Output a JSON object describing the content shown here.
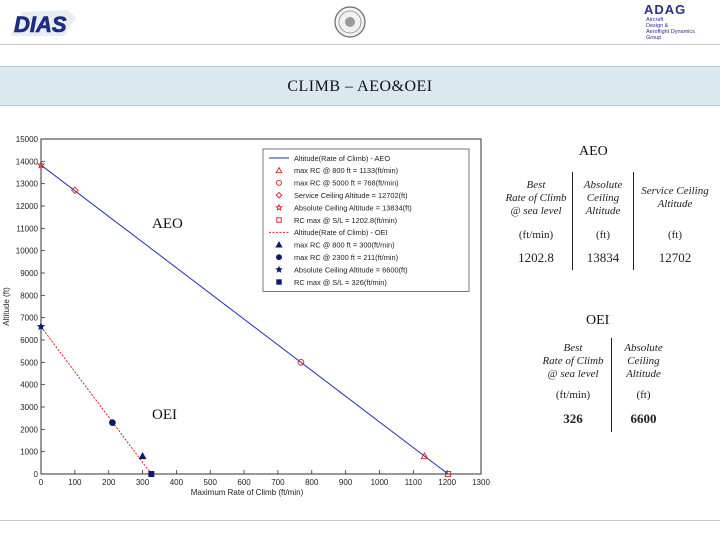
{
  "header": {
    "left_logo_text": "DIAS",
    "right_logo_text": "ADAG",
    "right_logo_subtitle": [
      "Aircraft",
      "Design &",
      "Aeroflight Dynamics",
      "Group"
    ]
  },
  "banner": {
    "title": "CLIMB – AEO&OEI"
  },
  "labels": {
    "aeo": "AEO",
    "oei": "OEI"
  },
  "chart_data": {
    "type": "scatter",
    "xlabel": "Maximum Rate of Climb (ft/min)",
    "ylabel": "Altitude (ft)",
    "xlim": [
      0,
      1300
    ],
    "ylim": [
      0,
      15000
    ],
    "x_ticks": [
      0,
      100,
      200,
      300,
      400,
      500,
      600,
      700,
      800,
      900,
      1000,
      1100,
      1200,
      1300
    ],
    "y_ticks": [
      0,
      1000,
      2000,
      3000,
      4000,
      5000,
      6000,
      7000,
      8000,
      9000,
      10000,
      11000,
      12000,
      13000,
      14000,
      15000
    ],
    "grid": false,
    "legend_position": "top-right",
    "lines": [
      {
        "name": "Altitude(Rate of Climb) - AEO",
        "color": "#1f2fb0",
        "dash": "solid",
        "points": [
          [
            1202.8,
            0
          ],
          [
            0,
            13834
          ]
        ]
      },
      {
        "name": "Altitude(Rate of Climb) - OEI",
        "color": "#d42020",
        "dash": "dotted",
        "points": [
          [
            326,
            0
          ],
          [
            0,
            6600
          ]
        ]
      }
    ],
    "markers": [
      {
        "name": "max RC @ 800 ft = 1133(ft/min)",
        "shape": "triangle-open",
        "color": "#d42020",
        "x": 1133,
        "y": 800
      },
      {
        "name": "max RC @ 5000 ft = 768(ft/min)",
        "shape": "circle-open",
        "color": "#d42020",
        "x": 768,
        "y": 5000
      },
      {
        "name": "Service Ceiling Altitude = 12702(ft)",
        "shape": "diamond-open",
        "color": "#d42020",
        "x": 100,
        "y": 12702
      },
      {
        "name": "Absolute Ceiling Altitude = 13834(ft)",
        "shape": "star-open",
        "color": "#d42020",
        "x": 0,
        "y": 13834
      },
      {
        "name": "RC max @ S/L = 1202.8(ft/min)",
        "shape": "square-open",
        "color": "#d42020",
        "x": 1202.8,
        "y": 0
      },
      {
        "name": "max RC @ 800 ft = 300(ft/min)",
        "shape": "triangle-filled",
        "color": "#0b1a6e",
        "x": 300,
        "y": 800
      },
      {
        "name": "max RC @ 2300 ft = 211(ft/min)",
        "shape": "circle-filled",
        "color": "#0b1a6e",
        "x": 211,
        "y": 2300
      },
      {
        "name": "Absolute Ceiling Altitude = 6600(ft)",
        "shape": "star-filled",
        "color": "#0b1a6e",
        "x": 0,
        "y": 6600
      },
      {
        "name": "RC max @ S/L = 326(ft/min)",
        "shape": "square-filled",
        "color": "#0b1a6e",
        "x": 326,
        "y": 0
      }
    ],
    "legend": [
      {
        "text": "Altitude(Rate of Climb) - AEO",
        "kind": "line",
        "color": "#1f2fb0",
        "dash": "solid"
      },
      {
        "text": "max RC @ 800 ft = 1133(ft/min)",
        "kind": "marker",
        "shape": "triangle-open",
        "color": "#d42020"
      },
      {
        "text": "max RC @ 5000 ft = 768(ft/min)",
        "kind": "marker",
        "shape": "circle-open",
        "color": "#d42020"
      },
      {
        "text": "Service Ceiling Altitude = 12702(ft)",
        "kind": "marker",
        "shape": "diamond-open",
        "color": "#d42020"
      },
      {
        "text": "Absolute Ceiling Altitude = 13834(ft)",
        "kind": "marker",
        "shape": "star-open",
        "color": "#d42020"
      },
      {
        "text": "RC max @ S/L = 1202.8(ft/min)",
        "kind": "marker",
        "shape": "square-open",
        "color": "#d42020"
      },
      {
        "text": "Altitude(Rate of Climb) - OEI",
        "kind": "line",
        "color": "#d42020",
        "dash": "dotted"
      },
      {
        "text": "max RC @ 800 ft = 300(ft/min)",
        "kind": "marker",
        "shape": "triangle-filled",
        "color": "#0b1a6e"
      },
      {
        "text": "max RC @ 2300 ft = 211(ft/min)",
        "kind": "marker",
        "shape": "circle-filled",
        "color": "#0b1a6e"
      },
      {
        "text": "Absolute Ceiling Altitude = 6600(ft)",
        "kind": "marker",
        "shape": "star-filled",
        "color": "#0b1a6e"
      },
      {
        "text": "RC max @ S/L = 326(ft/min)",
        "kind": "marker",
        "shape": "square-filled",
        "color": "#0b1a6e"
      }
    ]
  },
  "aeo_table": {
    "title": "AEO",
    "headers": [
      [
        "Best",
        "Rate of Climb",
        "@ sea level"
      ],
      [
        "Absolute",
        "Ceiling",
        "Altitude"
      ],
      [
        "Service Ceiling",
        "Altitude"
      ]
    ],
    "units": [
      "(ft/min)",
      "(ft)",
      "(ft)"
    ],
    "values": [
      "1202.8",
      "13834",
      "12702"
    ]
  },
  "oei_table": {
    "title": "OEI",
    "headers": [
      [
        "Best",
        "Rate of Climb",
        "@ sea level"
      ],
      [
        "Absolute",
        "Ceiling",
        "Altitude"
      ]
    ],
    "units": [
      "(ft/min)",
      "(ft)"
    ],
    "values": [
      "326",
      "6600"
    ]
  }
}
